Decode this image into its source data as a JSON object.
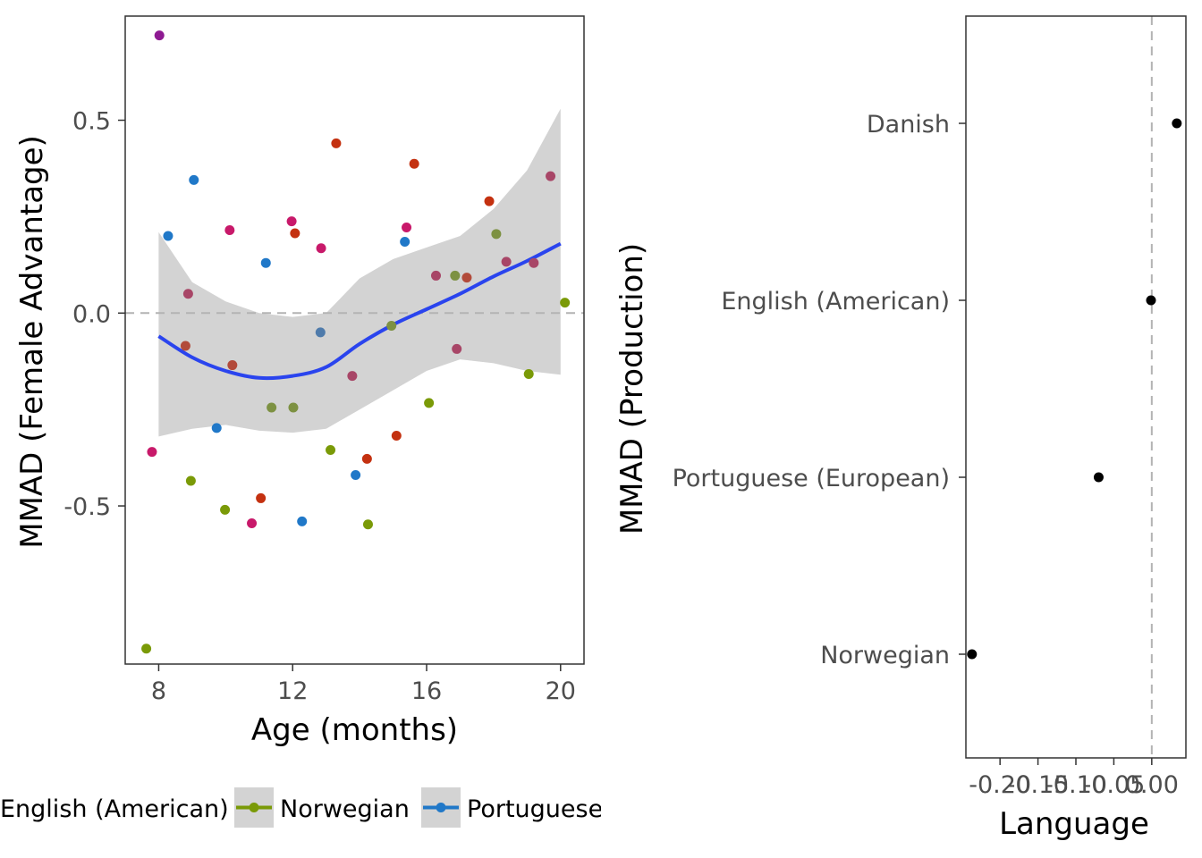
{
  "chart_data": [
    {
      "type": "scatter",
      "xlabel": "Age (months)",
      "ylabel": "MMAD (Female Advantage)",
      "xlim": [
        7.0,
        20.7
      ],
      "ylim": [
        -0.91,
        0.77
      ],
      "xticks": [
        8,
        12,
        16,
        20
      ],
      "xtick_labels": [
        "8",
        "12",
        "16",
        "20"
      ],
      "yticks": [
        0.5,
        0.0,
        -0.5
      ],
      "ytick_labels": [
        "0.5",
        "0.0",
        "-0.5"
      ],
      "reference_line_y": 0,
      "grid": false,
      "smooth": {
        "color": "#2a44ee",
        "band_color": "#d3d3d3",
        "x": [
          8,
          9,
          10,
          11,
          12,
          13,
          14,
          15,
          16,
          17,
          18,
          19,
          20
        ],
        "y": [
          -0.06,
          -0.115,
          -0.15,
          -0.168,
          -0.163,
          -0.14,
          -0.08,
          -0.03,
          0.01,
          0.05,
          0.095,
          0.135,
          0.18
        ],
        "lower": [
          -0.32,
          -0.3,
          -0.29,
          -0.305,
          -0.31,
          -0.3,
          -0.25,
          -0.2,
          -0.15,
          -0.12,
          -0.13,
          -0.15,
          -0.16
        ],
        "upper": [
          0.21,
          0.08,
          0.03,
          0.0,
          -0.01,
          -0.0,
          0.09,
          0.14,
          0.17,
          0.2,
          0.27,
          0.37,
          0.53
        ]
      },
      "points": [
        {
          "x": 8.02,
          "y": 0.72,
          "color": "#8e1a92"
        },
        {
          "x": 7.63,
          "y": -0.87,
          "color": "#7a9a07"
        },
        {
          "x": 7.8,
          "y": -0.36,
          "color": "#c8196a"
        },
        {
          "x": 8.28,
          "y": 0.2,
          "color": "#2078c8"
        },
        {
          "x": 8.8,
          "y": -0.085,
          "color": "#b24a3a"
        },
        {
          "x": 8.88,
          "y": 0.05,
          "color": "#a84667"
        },
        {
          "x": 8.96,
          "y": -0.435,
          "color": "#7a9a07"
        },
        {
          "x": 9.05,
          "y": 0.345,
          "color": "#2078c8"
        },
        {
          "x": 9.73,
          "y": -0.298,
          "color": "#2078c8"
        },
        {
          "x": 9.98,
          "y": -0.51,
          "color": "#7a9a07"
        },
        {
          "x": 10.12,
          "y": 0.215,
          "color": "#c8196a"
        },
        {
          "x": 10.2,
          "y": -0.135,
          "color": "#b24a3a"
        },
        {
          "x": 10.78,
          "y": -0.545,
          "color": "#c8196a"
        },
        {
          "x": 11.05,
          "y": -0.48,
          "color": "#c43110"
        },
        {
          "x": 11.2,
          "y": 0.13,
          "color": "#2078c8"
        },
        {
          "x": 11.37,
          "y": -0.245,
          "color": "#7d9142"
        },
        {
          "x": 11.97,
          "y": 0.238,
          "color": "#c8196a"
        },
        {
          "x": 12.02,
          "y": -0.245,
          "color": "#7d9142"
        },
        {
          "x": 12.07,
          "y": 0.207,
          "color": "#c43110"
        },
        {
          "x": 12.28,
          "y": -0.54,
          "color": "#2078c8"
        },
        {
          "x": 12.83,
          "y": -0.05,
          "color": "#4f7bab"
        },
        {
          "x": 12.85,
          "y": 0.168,
          "color": "#c8196a"
        },
        {
          "x": 13.13,
          "y": -0.355,
          "color": "#7a9a07"
        },
        {
          "x": 13.3,
          "y": 0.44,
          "color": "#c43110"
        },
        {
          "x": 13.78,
          "y": -0.163,
          "color": "#a84667"
        },
        {
          "x": 13.88,
          "y": -0.42,
          "color": "#2078c8"
        },
        {
          "x": 14.22,
          "y": -0.378,
          "color": "#c43110"
        },
        {
          "x": 14.25,
          "y": -0.548,
          "color": "#7a9a07"
        },
        {
          "x": 14.95,
          "y": -0.033,
          "color": "#7d9142"
        },
        {
          "x": 15.1,
          "y": -0.318,
          "color": "#c43110"
        },
        {
          "x": 15.35,
          "y": 0.185,
          "color": "#2078c8"
        },
        {
          "x": 15.4,
          "y": 0.222,
          "color": "#c8196a"
        },
        {
          "x": 15.63,
          "y": 0.387,
          "color": "#c43110"
        },
        {
          "x": 16.07,
          "y": -0.233,
          "color": "#7a9a07"
        },
        {
          "x": 16.28,
          "y": 0.097,
          "color": "#a84667"
        },
        {
          "x": 16.85,
          "y": 0.097,
          "color": "#7d9142"
        },
        {
          "x": 16.9,
          "y": -0.093,
          "color": "#a84667"
        },
        {
          "x": 17.2,
          "y": 0.092,
          "color": "#b24a3a"
        },
        {
          "x": 17.87,
          "y": 0.29,
          "color": "#c43110"
        },
        {
          "x": 18.08,
          "y": 0.205,
          "color": "#7d9142"
        },
        {
          "x": 18.38,
          "y": 0.133,
          "color": "#a84667"
        },
        {
          "x": 19.05,
          "y": -0.158,
          "color": "#7a9a07"
        },
        {
          "x": 19.2,
          "y": 0.13,
          "color": "#a84667"
        },
        {
          "x": 19.7,
          "y": 0.355,
          "color": "#a84667"
        },
        {
          "x": 20.13,
          "y": 0.027,
          "color": "#7a9a07"
        }
      ],
      "legend": {
        "placement": "bottom",
        "entries": [
          {
            "label": "English (American)",
            "color": "#c8196a"
          },
          {
            "label": "Norwegian",
            "color": "#7a9a07"
          },
          {
            "label": "Portuguese",
            "color": "#2078c8"
          }
        ]
      }
    },
    {
      "type": "scatter",
      "xlabel": "Language",
      "ylabel": "MMAD (Production)",
      "xlim": [
        -0.245,
        0.045
      ],
      "xticks": [
        -0.2,
        -0.15,
        -0.1,
        -0.05,
        0.0
      ],
      "xtick_labels": [
        "-0.20",
        "-0.15",
        "-0.10",
        "-0.05",
        "0.00"
      ],
      "categories": [
        "Danish",
        "English (American)",
        "Portuguese (European)",
        "Norwegian"
      ],
      "values": [
        0.033,
        -0.001,
        -0.07,
        -0.237
      ],
      "point_color": "#000000",
      "reference_line_x": 0,
      "grid": false
    }
  ]
}
